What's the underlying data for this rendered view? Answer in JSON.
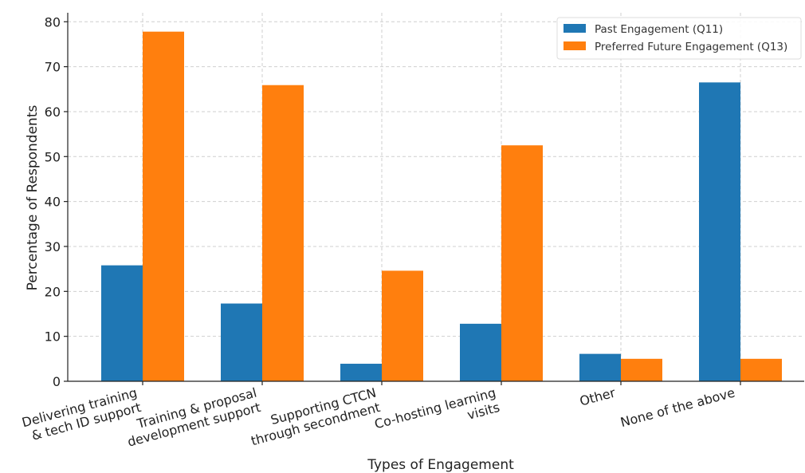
{
  "chart_data": {
    "type": "bar",
    "title": "",
    "xlabel": "Types of Engagement",
    "ylabel": "Percentage of Respondents",
    "ylim": [
      0,
      82
    ],
    "yticks": [
      0,
      10,
      20,
      30,
      40,
      50,
      60,
      70,
      80
    ],
    "grid": true,
    "legend_position": "top-right",
    "categories": [
      [
        "Delivering training",
        "& tech ID support"
      ],
      [
        "Training & proposal",
        "development support"
      ],
      [
        "Supporting CTCN",
        "through secondment"
      ],
      [
        "Co-hosting learning",
        "visits"
      ],
      [
        "Other"
      ],
      [
        "None of the above"
      ]
    ],
    "series": [
      {
        "name": "Past Engagement (Q11)",
        "color": "#1f77b4",
        "values": [
          25.8,
          17.3,
          3.9,
          12.8,
          6.1,
          66.5
        ]
      },
      {
        "name": "Preferred Future Engagement (Q13)",
        "color": "#ff7f0e",
        "values": [
          77.8,
          65.9,
          24.6,
          52.5,
          5.0,
          5.0
        ]
      }
    ]
  }
}
